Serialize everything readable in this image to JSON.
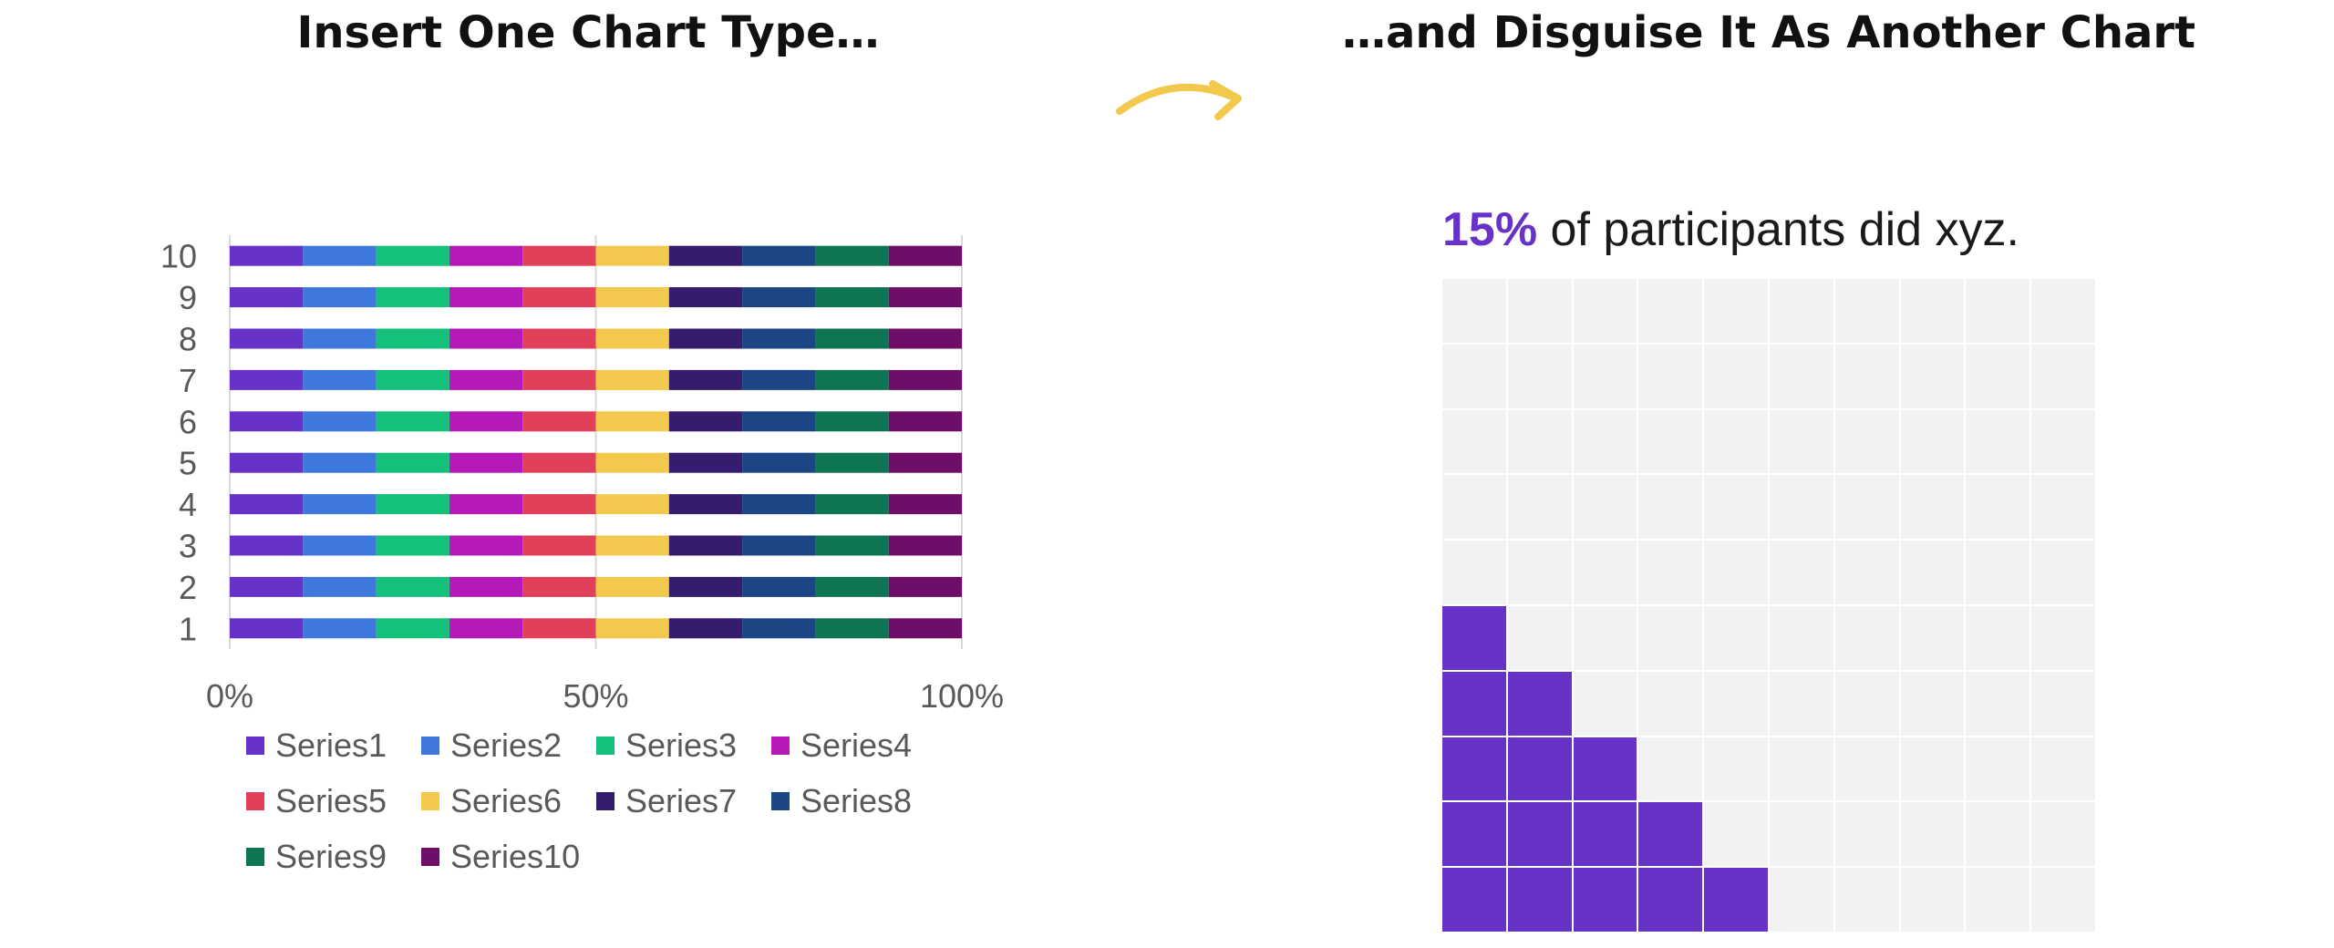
{
  "header": {
    "left_title": "Insert One Chart Type…",
    "right_title": "…and Disguise It As Another Chart"
  },
  "arrow": {
    "icon": "curved-arrow-right-icon",
    "color": "#F2C94C"
  },
  "chart_data": [
    {
      "type": "bar",
      "orientation": "horizontal",
      "stacked": "percent",
      "categories": [
        "1",
        "2",
        "3",
        "4",
        "5",
        "6",
        "7",
        "8",
        "9",
        "10"
      ],
      "series": [
        {
          "name": "Series1",
          "color": "#6632C8",
          "values": [
            1,
            1,
            1,
            1,
            1,
            1,
            1,
            1,
            1,
            1
          ]
        },
        {
          "name": "Series2",
          "color": "#3F78DD",
          "values": [
            1,
            1,
            1,
            1,
            1,
            1,
            1,
            1,
            1,
            1
          ]
        },
        {
          "name": "Series3",
          "color": "#14C07A",
          "values": [
            1,
            1,
            1,
            1,
            1,
            1,
            1,
            1,
            1,
            1
          ]
        },
        {
          "name": "Series4",
          "color": "#B51AB8",
          "values": [
            1,
            1,
            1,
            1,
            1,
            1,
            1,
            1,
            1,
            1
          ]
        },
        {
          "name": "Series5",
          "color": "#E0405A",
          "values": [
            1,
            1,
            1,
            1,
            1,
            1,
            1,
            1,
            1,
            1
          ]
        },
        {
          "name": "Series6",
          "color": "#F2C94C",
          "values": [
            1,
            1,
            1,
            1,
            1,
            1,
            1,
            1,
            1,
            1
          ]
        },
        {
          "name": "Series7",
          "color": "#361C6E",
          "values": [
            1,
            1,
            1,
            1,
            1,
            1,
            1,
            1,
            1,
            1
          ]
        },
        {
          "name": "Series8",
          "color": "#1C4585",
          "values": [
            1,
            1,
            1,
            1,
            1,
            1,
            1,
            1,
            1,
            1
          ]
        },
        {
          "name": "Series9",
          "color": "#0E7454",
          "values": [
            1,
            1,
            1,
            1,
            1,
            1,
            1,
            1,
            1,
            1
          ]
        },
        {
          "name": "Series10",
          "color": "#6E0E68",
          "values": [
            1,
            1,
            1,
            1,
            1,
            1,
            1,
            1,
            1,
            1
          ]
        }
      ],
      "xlim": [
        0,
        100
      ],
      "xticks": [
        "0%",
        "50%",
        "100%"
      ],
      "grid": true,
      "legend": "bottom"
    },
    {
      "type": "waffle",
      "rows": 10,
      "columns": 10,
      "percent_label": "15%",
      "caption_text": " of participants did xyz.",
      "filled_per_column": [
        5,
        4,
        3,
        2,
        1,
        0,
        0,
        0,
        0,
        0
      ],
      "filled_color": "#6632C8",
      "empty_color": "#F2F2F2"
    }
  ]
}
